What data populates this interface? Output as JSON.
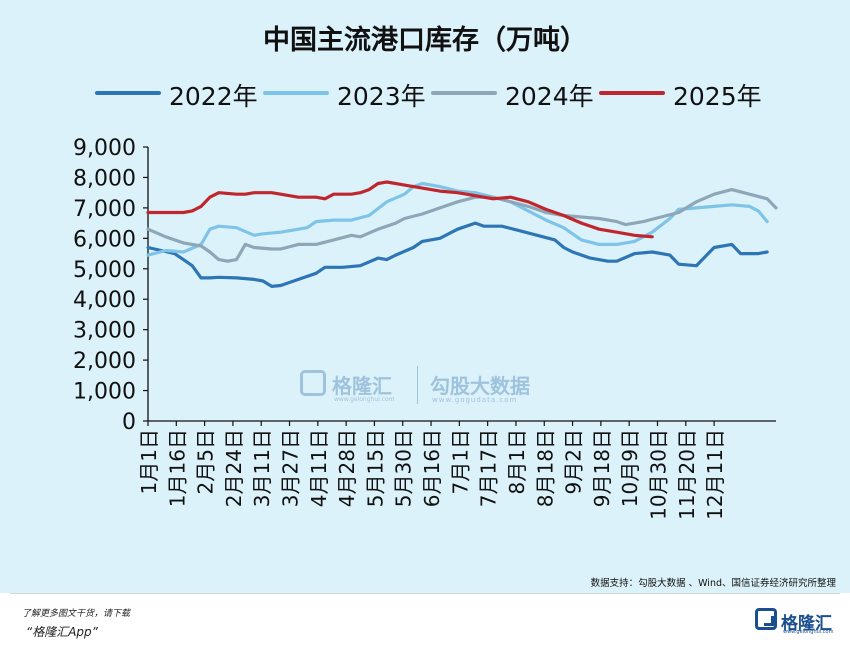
{
  "chart_data": {
    "type": "line",
    "title": "中国主流港口库存（万吨）",
    "xlabel": "",
    "ylabel": "",
    "ylim": [
      0,
      9000
    ],
    "yticks": [
      0,
      1000,
      2000,
      3000,
      4000,
      5000,
      6000,
      7000,
      8000,
      9000
    ],
    "ytick_labels": [
      "0",
      "1,000",
      "2,000",
      "3,000",
      "4,000",
      "5,000",
      "6,000",
      "7,000",
      "8,000",
      "9,000"
    ],
    "x_tick_labels": [
      "1月1日",
      "1月16日",
      "2月5日",
      "2月24日",
      "3月11日",
      "3月27日",
      "4月11日",
      "4月28日",
      "5月15日",
      "5月30日",
      "6月16日",
      "7月1日",
      "7月17日",
      "8月1日",
      "8月18日",
      "9月2日",
      "9月18日",
      "10月9日",
      "10月30日",
      "11月20日",
      "12月11日"
    ],
    "x_index_max": 64,
    "grid": false,
    "legend_position": "top",
    "series": [
      {
        "name": "2022年",
        "color": "#2e75b6",
        "points": [
          [
            0,
            5700
          ],
          [
            3,
            5500
          ],
          [
            4,
            5300
          ],
          [
            5,
            5100
          ],
          [
            6,
            4700
          ],
          [
            7,
            4700
          ],
          [
            8,
            4720
          ],
          [
            10,
            4700
          ],
          [
            12,
            4650
          ],
          [
            13,
            4600
          ],
          [
            14,
            4420
          ],
          [
            15,
            4450
          ],
          [
            17,
            4650
          ],
          [
            19,
            4850
          ],
          [
            20,
            5050
          ],
          [
            22,
            5050
          ],
          [
            24,
            5100
          ],
          [
            26,
            5350
          ],
          [
            27,
            5300
          ],
          [
            28,
            5450
          ],
          [
            30,
            5700
          ],
          [
            31,
            5900
          ],
          [
            33,
            6000
          ],
          [
            35,
            6300
          ],
          [
            37,
            6500
          ],
          [
            38,
            6400
          ],
          [
            40,
            6400
          ],
          [
            42,
            6250
          ],
          [
            44,
            6100
          ],
          [
            46,
            5950
          ],
          [
            47,
            5700
          ],
          [
            48,
            5550
          ],
          [
            50,
            5350
          ],
          [
            52,
            5250
          ],
          [
            53,
            5250
          ],
          [
            55,
            5500
          ],
          [
            57,
            5550
          ],
          [
            59,
            5450
          ],
          [
            60,
            5150
          ],
          [
            62,
            5100
          ],
          [
            64,
            5700
          ],
          [
            66,
            5800
          ],
          [
            67,
            5500
          ],
          [
            69,
            5500
          ],
          [
            70,
            5550
          ]
        ]
      },
      {
        "name": "2023年",
        "color": "#7ec4e8",
        "points": [
          [
            0,
            5450
          ],
          [
            2,
            5600
          ],
          [
            4,
            5550
          ],
          [
            6,
            5800
          ],
          [
            7,
            6300
          ],
          [
            8,
            6400
          ],
          [
            10,
            6350
          ],
          [
            12,
            6100
          ],
          [
            13,
            6150
          ],
          [
            15,
            6200
          ],
          [
            17,
            6300
          ],
          [
            18,
            6350
          ],
          [
            19,
            6550
          ],
          [
            21,
            6600
          ],
          [
            23,
            6600
          ],
          [
            25,
            6750
          ],
          [
            27,
            7200
          ],
          [
            29,
            7450
          ],
          [
            30,
            7700
          ],
          [
            31,
            7800
          ],
          [
            33,
            7700
          ],
          [
            35,
            7550
          ],
          [
            37,
            7500
          ],
          [
            39,
            7350
          ],
          [
            41,
            7200
          ],
          [
            43,
            6900
          ],
          [
            45,
            6600
          ],
          [
            47,
            6350
          ],
          [
            49,
            5950
          ],
          [
            51,
            5800
          ],
          [
            53,
            5800
          ],
          [
            55,
            5900
          ],
          [
            57,
            6200
          ],
          [
            59,
            6650
          ],
          [
            60,
            6950
          ],
          [
            62,
            7000
          ],
          [
            64,
            7050
          ],
          [
            66,
            7100
          ],
          [
            68,
            7050
          ],
          [
            69,
            6900
          ],
          [
            70,
            6550
          ]
        ]
      },
      {
        "name": "2024年",
        "color": "#8ea7b8",
        "points": [
          [
            0,
            6300
          ],
          [
            2,
            6050
          ],
          [
            4,
            5850
          ],
          [
            6,
            5750
          ],
          [
            7,
            5550
          ],
          [
            8,
            5300
          ],
          [
            9,
            5250
          ],
          [
            10,
            5300
          ],
          [
            11,
            5800
          ],
          [
            12,
            5700
          ],
          [
            14,
            5650
          ],
          [
            15,
            5650
          ],
          [
            17,
            5800
          ],
          [
            19,
            5800
          ],
          [
            21,
            5950
          ],
          [
            23,
            6100
          ],
          [
            24,
            6050
          ],
          [
            26,
            6300
          ],
          [
            28,
            6500
          ],
          [
            29,
            6650
          ],
          [
            31,
            6800
          ],
          [
            33,
            7000
          ],
          [
            35,
            7200
          ],
          [
            37,
            7350
          ],
          [
            39,
            7350
          ],
          [
            41,
            7200
          ],
          [
            43,
            7050
          ],
          [
            45,
            6850
          ],
          [
            47,
            6750
          ],
          [
            49,
            6700
          ],
          [
            51,
            6650
          ],
          [
            53,
            6550
          ],
          [
            54,
            6450
          ],
          [
            56,
            6550
          ],
          [
            58,
            6700
          ],
          [
            60,
            6850
          ],
          [
            62,
            7200
          ],
          [
            64,
            7450
          ],
          [
            66,
            7600
          ],
          [
            68,
            7450
          ],
          [
            70,
            7300
          ],
          [
            71,
            7000
          ]
        ]
      },
      {
        "name": "2025年",
        "color": "#c0262d",
        "points": [
          [
            0,
            6850
          ],
          [
            2,
            6850
          ],
          [
            4,
            6850
          ],
          [
            5,
            6900
          ],
          [
            6,
            7050
          ],
          [
            7,
            7350
          ],
          [
            8,
            7500
          ],
          [
            10,
            7450
          ],
          [
            11,
            7450
          ],
          [
            12,
            7500
          ],
          [
            14,
            7500
          ],
          [
            15,
            7450
          ],
          [
            17,
            7350
          ],
          [
            19,
            7350
          ],
          [
            20,
            7300
          ],
          [
            21,
            7450
          ],
          [
            23,
            7450
          ],
          [
            24,
            7500
          ],
          [
            25,
            7600
          ],
          [
            26,
            7800
          ],
          [
            27,
            7850
          ],
          [
            29,
            7750
          ],
          [
            31,
            7650
          ],
          [
            33,
            7550
          ],
          [
            35,
            7500
          ],
          [
            37,
            7400
          ],
          [
            39,
            7300
          ],
          [
            41,
            7350
          ],
          [
            43,
            7200
          ],
          [
            45,
            6950
          ],
          [
            47,
            6750
          ],
          [
            49,
            6500
          ],
          [
            51,
            6300
          ],
          [
            53,
            6200
          ],
          [
            55,
            6100
          ],
          [
            57,
            6050
          ]
        ]
      }
    ]
  },
  "watermark": {
    "name1": "格隆汇",
    "url1": "www.gelonghui.com",
    "name2": "勾股大数据",
    "url2": "www.gogudata.com"
  },
  "source_note": "数据支持：勾股大数据 、Wind、国信证券经济研究所整理",
  "footer": {
    "promo": "了解更多图文干货，请下载",
    "app": "“格隆汇App”",
    "logo_text": "格隆汇",
    "logo_url": "www.gelonghui.com"
  }
}
